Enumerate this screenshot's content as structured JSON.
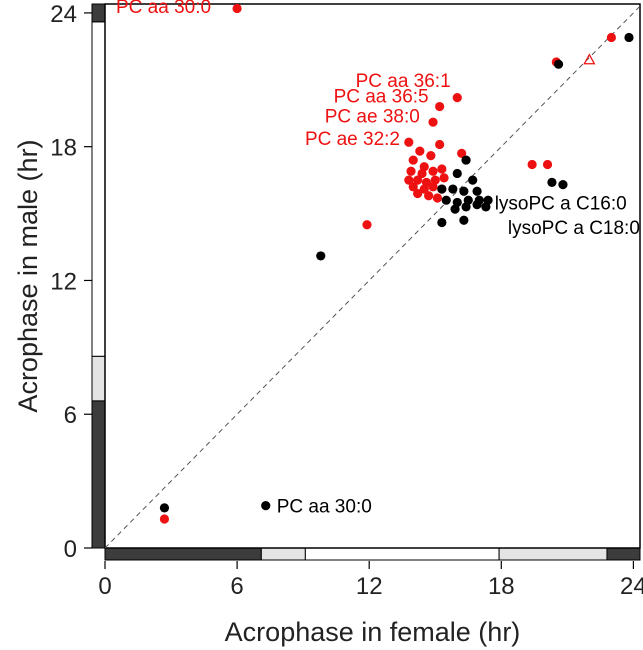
{
  "chart_data": {
    "type": "scatter",
    "xlabel": "Acrophase in female (hr)",
    "ylabel": "Acrophase in male (hr)",
    "xlim": [
      0,
      24.3
    ],
    "ylim": [
      0,
      24.4
    ],
    "x_ticks": [
      0,
      6,
      12,
      18,
      24
    ],
    "y_ticks": [
      0,
      6,
      12,
      18,
      24
    ],
    "x_tick_labels": [
      "0",
      "6",
      "12",
      "18",
      "24"
    ],
    "y_tick_labels": [
      "0",
      "6",
      "12",
      "18",
      "24"
    ],
    "identity_line": true,
    "grid": false,
    "legend": "none",
    "light_dark_bar_x": [
      {
        "from": 0,
        "to": 7.1,
        "shade": "dark"
      },
      {
        "from": 7.1,
        "to": 9.1,
        "shade": "light"
      },
      {
        "from": 9.1,
        "to": 17.9,
        "shade": "white"
      },
      {
        "from": 17.9,
        "to": 22.8,
        "shade": "light"
      },
      {
        "from": 22.8,
        "to": 24.3,
        "shade": "dark"
      }
    ],
    "light_dark_bar_y": [
      {
        "from": 0,
        "to": 6.6,
        "shade": "dark"
      },
      {
        "from": 6.6,
        "to": 8.6,
        "shade": "light"
      },
      {
        "from": 8.6,
        "to": 23.6,
        "shade": "white"
      },
      {
        "from": 23.6,
        "to": 24.4,
        "shade": "dark"
      }
    ],
    "series": [
      {
        "color": "#ee1111",
        "points": [
          {
            "x": 6.0,
            "y": 24.2
          },
          {
            "x": 23.0,
            "y": 22.9
          },
          {
            "x": 20.5,
            "y": 21.8
          },
          {
            "x": 16.0,
            "y": 20.2
          },
          {
            "x": 15.2,
            "y": 19.8
          },
          {
            "x": 14.9,
            "y": 19.1
          },
          {
            "x": 13.8,
            "y": 18.2
          },
          {
            "x": 14.3,
            "y": 17.8
          },
          {
            "x": 14.8,
            "y": 17.6
          },
          {
            "x": 15.2,
            "y": 18.1
          },
          {
            "x": 16.2,
            "y": 17.7
          },
          {
            "x": 19.4,
            "y": 17.2
          },
          {
            "x": 20.1,
            "y": 17.2
          },
          {
            "x": 14.0,
            "y": 17.4
          },
          {
            "x": 14.5,
            "y": 17.1
          },
          {
            "x": 13.9,
            "y": 16.9
          },
          {
            "x": 14.4,
            "y": 16.8
          },
          {
            "x": 14.9,
            "y": 16.9
          },
          {
            "x": 15.3,
            "y": 17.0
          },
          {
            "x": 13.8,
            "y": 16.5
          },
          {
            "x": 14.2,
            "y": 16.5
          },
          {
            "x": 14.6,
            "y": 16.4
          },
          {
            "x": 15.0,
            "y": 16.5
          },
          {
            "x": 15.4,
            "y": 16.6
          },
          {
            "x": 14.0,
            "y": 16.2
          },
          {
            "x": 14.5,
            "y": 16.1
          },
          {
            "x": 14.9,
            "y": 16.2
          },
          {
            "x": 15.3,
            "y": 16.1
          },
          {
            "x": 14.2,
            "y": 15.9
          },
          {
            "x": 14.7,
            "y": 15.8
          },
          {
            "x": 15.1,
            "y": 15.7
          },
          {
            "x": 11.9,
            "y": 14.5
          },
          {
            "x": 2.7,
            "y": 1.3
          }
        ]
      },
      {
        "color": "#000000",
        "points": [
          {
            "x": 23.8,
            "y": 22.9
          },
          {
            "x": 20.6,
            "y": 21.7
          },
          {
            "x": 16.4,
            "y": 17.4
          },
          {
            "x": 16.0,
            "y": 16.8
          },
          {
            "x": 16.7,
            "y": 16.5
          },
          {
            "x": 15.3,
            "y": 16.1
          },
          {
            "x": 15.8,
            "y": 16.1
          },
          {
            "x": 16.3,
            "y": 16.0
          },
          {
            "x": 16.9,
            "y": 16.0
          },
          {
            "x": 20.3,
            "y": 16.4
          },
          {
            "x": 20.8,
            "y": 16.3
          },
          {
            "x": 15.5,
            "y": 15.6
          },
          {
            "x": 16.0,
            "y": 15.5
          },
          {
            "x": 16.5,
            "y": 15.6
          },
          {
            "x": 17.0,
            "y": 15.6
          },
          {
            "x": 17.4,
            "y": 15.6
          },
          {
            "x": 15.9,
            "y": 15.2
          },
          {
            "x": 16.4,
            "y": 15.3
          },
          {
            "x": 16.9,
            "y": 15.4
          },
          {
            "x": 17.3,
            "y": 15.3
          },
          {
            "x": 15.3,
            "y": 14.6
          },
          {
            "x": 16.3,
            "y": 14.7
          },
          {
            "x": 9.8,
            "y": 13.1
          },
          {
            "x": 7.3,
            "y": 1.9
          },
          {
            "x": 2.7,
            "y": 1.8
          }
        ]
      }
    ],
    "triangle_marker": {
      "x": 22.0,
      "y": 21.9,
      "color": "#ee1111"
    },
    "annotations": [
      {
        "text": "PC aa 30:0",
        "x": 0.5,
        "y": 24.3,
        "color": "#ee1111",
        "anchor": "start"
      },
      {
        "text": "PC aa 36:1",
        "x": 15.7,
        "y": 21.0,
        "color": "#ee1111",
        "anchor": "end"
      },
      {
        "text": "PC aa 36:5",
        "x": 14.7,
        "y": 20.3,
        "color": "#ee1111",
        "anchor": "end"
      },
      {
        "text": "PC ae 38:0",
        "x": 14.3,
        "y": 19.4,
        "color": "#ee1111",
        "anchor": "end"
      },
      {
        "text": "PC ae 32:2",
        "x": 13.4,
        "y": 18.4,
        "color": "#ee1111",
        "anchor": "end"
      },
      {
        "text": "lysoPC a C16:0",
        "x": 17.7,
        "y": 15.5,
        "color": "#000000",
        "anchor": "start"
      },
      {
        "text": "lysoPC a C18:0",
        "x": 18.3,
        "y": 14.4,
        "color": "#000000",
        "anchor": "start"
      },
      {
        "text": "PC aa 30:0",
        "x": 7.8,
        "y": 1.9,
        "color": "#000000",
        "anchor": "start"
      }
    ]
  }
}
